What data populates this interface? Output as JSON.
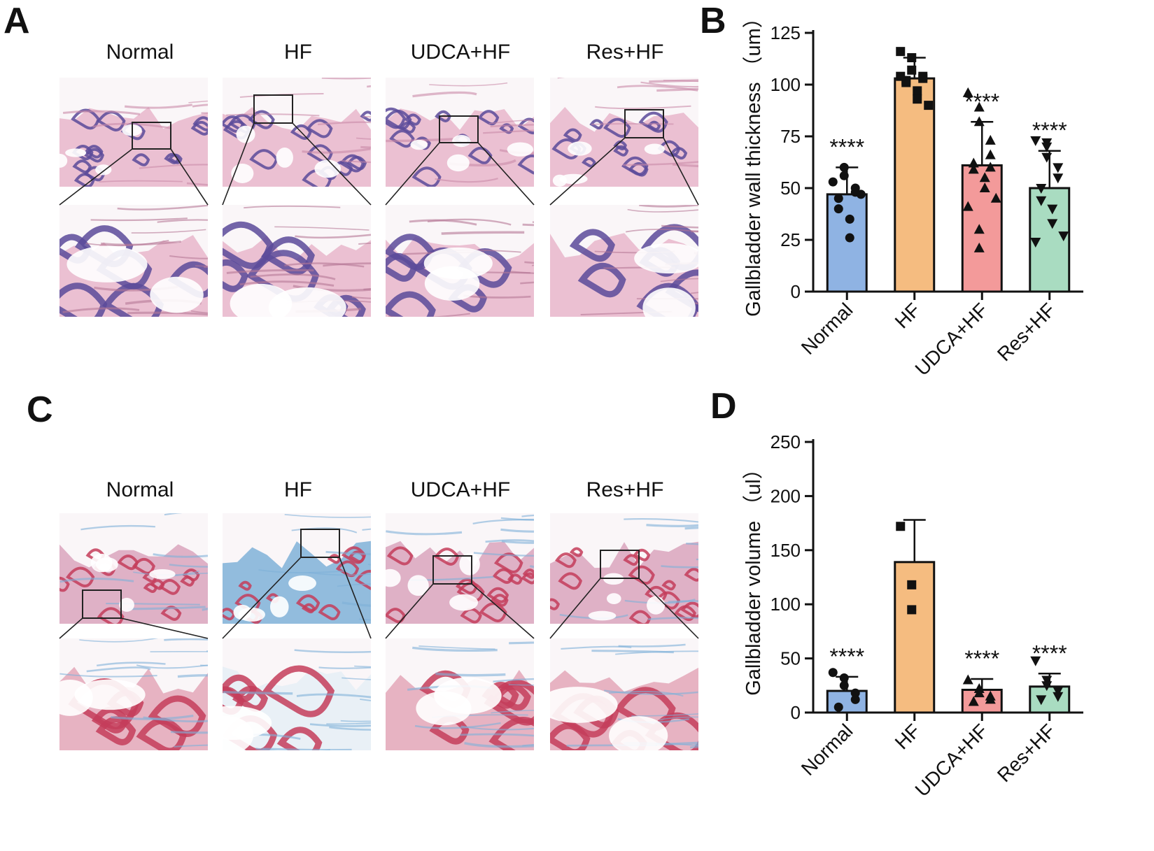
{
  "panels": {
    "a": "A",
    "b": "B",
    "c": "C",
    "d": "D"
  },
  "groups_he": [
    "Normal",
    "HF",
    "UDCA+HF",
    "Res+HF"
  ],
  "groups_masson": [
    "Normal",
    "HF",
    "UDCA+HF",
    "Res+HF"
  ],
  "colors": {
    "Normal": "#8fb3e3",
    "HF": "#f5bc80",
    "UDCA+HF": "#f39a9a",
    "Res+HF": "#a9dcc1",
    "he_pink": "#e7b6cb",
    "he_purple": "#5b4a9a",
    "masson_red": "#c43d5a",
    "masson_blue": "#7fb1d8"
  },
  "chart_data": [
    {
      "panel": "B",
      "type": "bar",
      "categories": [
        "Normal",
        "HF",
        "UDCA+HF",
        "Res+HF"
      ],
      "values": [
        47,
        103,
        61,
        50
      ],
      "error": [
        13,
        10,
        21,
        18
      ],
      "points": [
        [
          53,
          60,
          56,
          50,
          48,
          45,
          40,
          35,
          26,
          47
        ],
        [
          116,
          113,
          107,
          104,
          103,
          102,
          101,
          97,
          93,
          90,
          104
        ],
        [
          96,
          89,
          82,
          73,
          66,
          62,
          59,
          55,
          50,
          45,
          41,
          30,
          21,
          60
        ],
        [
          73,
          72,
          65,
          60,
          55,
          50,
          44,
          40,
          33,
          27,
          24,
          70
        ]
      ],
      "markers": [
        "circle",
        "square",
        "triangle",
        "triangle-down"
      ],
      "significance": [
        "****",
        "",
        "****",
        "****"
      ],
      "ylabel": "Gallbladder wall thickness （um）",
      "ylim": [
        0,
        125
      ],
      "yticks": [
        0,
        25,
        50,
        75,
        100,
        125
      ]
    },
    {
      "panel": "D",
      "type": "bar",
      "categories": [
        "Normal",
        "HF",
        "UDCA+HF",
        "Res+HF"
      ],
      "values": [
        20,
        139,
        21,
        24
      ],
      "error": [
        13,
        39,
        10,
        12
      ],
      "points": [
        [
          37,
          32,
          25,
          18,
          12,
          5
        ],
        [
          172,
          118,
          95
        ],
        [
          30,
          22,
          18,
          15,
          12,
          10
        ],
        [
          48,
          30,
          25,
          20,
          15,
          12
        ]
      ],
      "markers": [
        "circle",
        "square",
        "triangle",
        "triangle-down"
      ],
      "significance": [
        "****",
        "",
        "****",
        "****"
      ],
      "ylabel": "Gallbladder volume （ul）",
      "ylim": [
        0,
        250
      ],
      "yticks": [
        0,
        50,
        100,
        150,
        200,
        250
      ]
    }
  ]
}
